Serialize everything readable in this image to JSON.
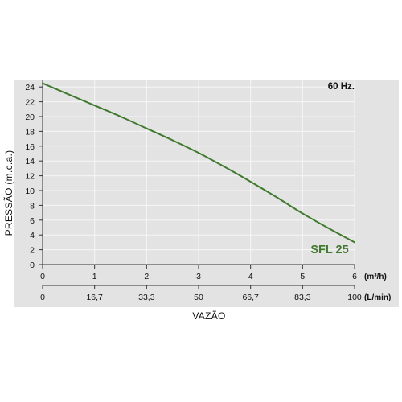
{
  "chart_data": {
    "type": "line",
    "frequency_label": "60 Hz.",
    "ylabel": "PRESSÃO (m.c.a.)",
    "xlabel": "VAZÃO",
    "x_axis_top": {
      "unit": "(m³/h)",
      "ticks": [
        0,
        1,
        2,
        3,
        4,
        5,
        6
      ],
      "tick_labels": [
        "0",
        "1",
        "2",
        "3",
        "4",
        "5",
        "6"
      ],
      "range": [
        0,
        6
      ]
    },
    "x_axis_bottom": {
      "unit": "(L/min)",
      "tick_labels": [
        "0",
        "16,7",
        "33,3",
        "50",
        "66,7",
        "83,3",
        "100"
      ]
    },
    "y_axis": {
      "range": [
        0,
        25
      ],
      "ticks": [
        0,
        2,
        4,
        6,
        8,
        10,
        12,
        14,
        16,
        18,
        20,
        22,
        24
      ],
      "tick_labels": [
        "0",
        "2",
        "4",
        "6",
        "8",
        "10",
        "12",
        "14",
        "16",
        "18",
        "20",
        "22",
        "24"
      ]
    },
    "grid": true,
    "series": [
      {
        "name": "SFL 25",
        "color": "#3f7a2c",
        "x": [
          0,
          0.5,
          1,
          1.5,
          2,
          2.5,
          3,
          3.5,
          4,
          4.5,
          5,
          5.5,
          6
        ],
        "y": [
          24.5,
          23.0,
          21.5,
          20.0,
          18.4,
          16.8,
          15.1,
          13.2,
          11.2,
          9.1,
          6.9,
          4.9,
          3.0
        ]
      }
    ]
  },
  "colors": {
    "panel": "#e3e3e3",
    "grid": "#f6f6f6",
    "tick": "#333333",
    "line": "#3f7a2c"
  }
}
